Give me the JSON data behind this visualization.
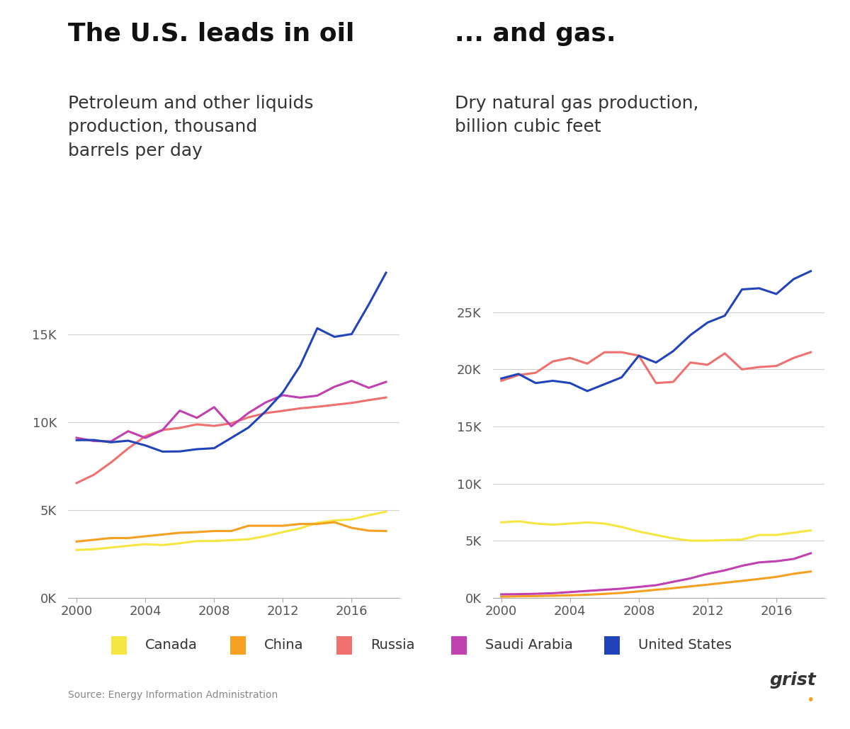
{
  "years": [
    2000,
    2001,
    2002,
    2003,
    2004,
    2005,
    2006,
    2007,
    2008,
    2009,
    2010,
    2011,
    2012,
    2013,
    2014,
    2015,
    2016,
    2017,
    2018
  ],
  "oil": {
    "Canada": [
      2720,
      2760,
      2860,
      2960,
      3050,
      3000,
      3100,
      3230,
      3230,
      3280,
      3330,
      3510,
      3740,
      3950,
      4270,
      4400,
      4460,
      4700,
      4900
    ],
    "China": [
      3200,
      3300,
      3400,
      3400,
      3500,
      3600,
      3700,
      3740,
      3800,
      3800,
      4100,
      4100,
      4100,
      4200,
      4200,
      4300,
      3980,
      3820,
      3800
    ],
    "Russia": [
      6530,
      7000,
      7700,
      8500,
      9200,
      9550,
      9670,
      9870,
      9780,
      9930,
      10270,
      10510,
      10640,
      10780,
      10870,
      10980,
      11090,
      11250,
      11400
    ],
    "Saudi Arabia": [
      9105,
      8920,
      8900,
      9480,
      9100,
      9550,
      10650,
      10240,
      10850,
      9760,
      10520,
      11120,
      11530,
      11390,
      11505,
      12010,
      12350,
      11950,
      12287
    ],
    "United States": [
      8970,
      8980,
      8850,
      8940,
      8670,
      8320,
      8330,
      8457,
      8514,
      9100,
      9690,
      10620,
      11690,
      13200,
      15340,
      14850,
      15010,
      16700,
      18500
    ]
  },
  "gas": {
    "Canada": [
      6600,
      6700,
      6500,
      6400,
      6500,
      6600,
      6500,
      6200,
      5800,
      5500,
      5200,
      5000,
      5000,
      5050,
      5100,
      5500,
      5500,
      5700,
      5900
    ],
    "China": [
      100,
      130,
      150,
      180,
      220,
      270,
      340,
      430,
      560,
      700,
      840,
      1000,
      1150,
      1320,
      1480,
      1650,
      1830,
      2100,
      2300
    ],
    "Russia": [
      19000,
      19500,
      19700,
      20700,
      21000,
      20500,
      21500,
      21500,
      21200,
      18800,
      18900,
      20600,
      20400,
      21400,
      20000,
      20200,
      20300,
      21000,
      21500
    ],
    "Saudi Arabia": [
      300,
      320,
      350,
      400,
      500,
      600,
      700,
      800,
      950,
      1100,
      1400,
      1700,
      2100,
      2400,
      2800,
      3100,
      3200,
      3400,
      3900
    ],
    "United States": [
      19200,
      19600,
      18800,
      19000,
      18800,
      18100,
      18700,
      19300,
      21200,
      20600,
      21600,
      23000,
      24100,
      24700,
      27000,
      27100,
      26600,
      27900,
      28600
    ]
  },
  "colors": {
    "Canada": "#f5e642",
    "China": "#f5a020",
    "Russia": "#f07070",
    "Saudi Arabia": "#c040b0",
    "United States": "#2244bb"
  },
  "title_oil": "The U.S. leads in oil",
  "title_gas": "... and gas.",
  "subtitle_oil": "Petroleum and other liquids\nproduction, thousand\nbarrels per day",
  "subtitle_gas": "Dry natural gas production,\nbillion cubic feet",
  "source": "Source: Energy Information Administration",
  "oil_yticks": [
    0,
    5000,
    10000,
    15000
  ],
  "oil_ylim": [
    0,
    19500
  ],
  "gas_yticks": [
    0,
    5000,
    10000,
    15000,
    20000,
    25000
  ],
  "gas_ylim": [
    0,
    30000
  ],
  "background_color": "#ffffff",
  "line_width": 2.2,
  "grid_color": "#d0d0d0",
  "legend_items": [
    "Canada",
    "China",
    "Russia",
    "Saudi Arabia",
    "United States"
  ]
}
